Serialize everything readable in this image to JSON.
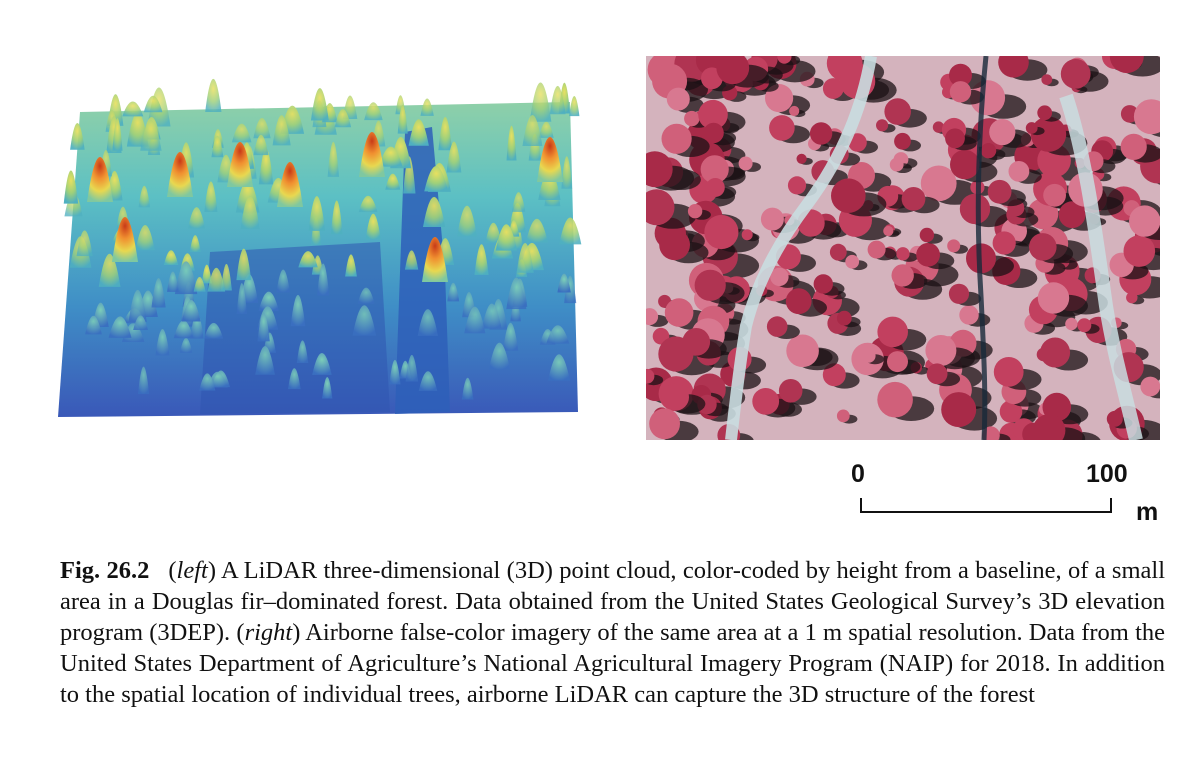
{
  "figure": {
    "left_panel": {
      "kind": "lidar-point-cloud-image"
    },
    "right_panel": {
      "kind": "false-color-aerial-image"
    },
    "scale_bar": {
      "start_label": "0",
      "end_label": "100",
      "unit": "m",
      "start_value": 0,
      "end_value": 100
    }
  },
  "caption": {
    "label": "Fig. 26.2",
    "seg1_open": "(",
    "seg1_ital": "left",
    "seg1_text": ") A LiDAR three-dimensional (3D) point cloud, color-coded by height from a baseline, of a small area in a Douglas fir–dominated forest. Data obtained from the United States Geological Survey’s 3D elevation program (3DEP). (",
    "seg2_ital": "right",
    "seg2_text": ") Airborne false-color imagery of the same area at a 1 m spatial resolution. Data from the United States Department of Agriculture’s National Agricultural Imagery Program (NAIP) for 2018. In addition to the spatial location of individual trees, airborne LiDAR can capture the 3D structure of the forest"
  },
  "colors": {
    "lidar_low": "#2f4fb0",
    "lidar_mid": "#4fb0c8",
    "lidar_high": "#d8d84a",
    "lidar_peak": "#d84a1a",
    "naip_vegetation": "#c0405e",
    "naip_ground": "#d8c9cc",
    "naip_shadow": "#1a1014"
  }
}
